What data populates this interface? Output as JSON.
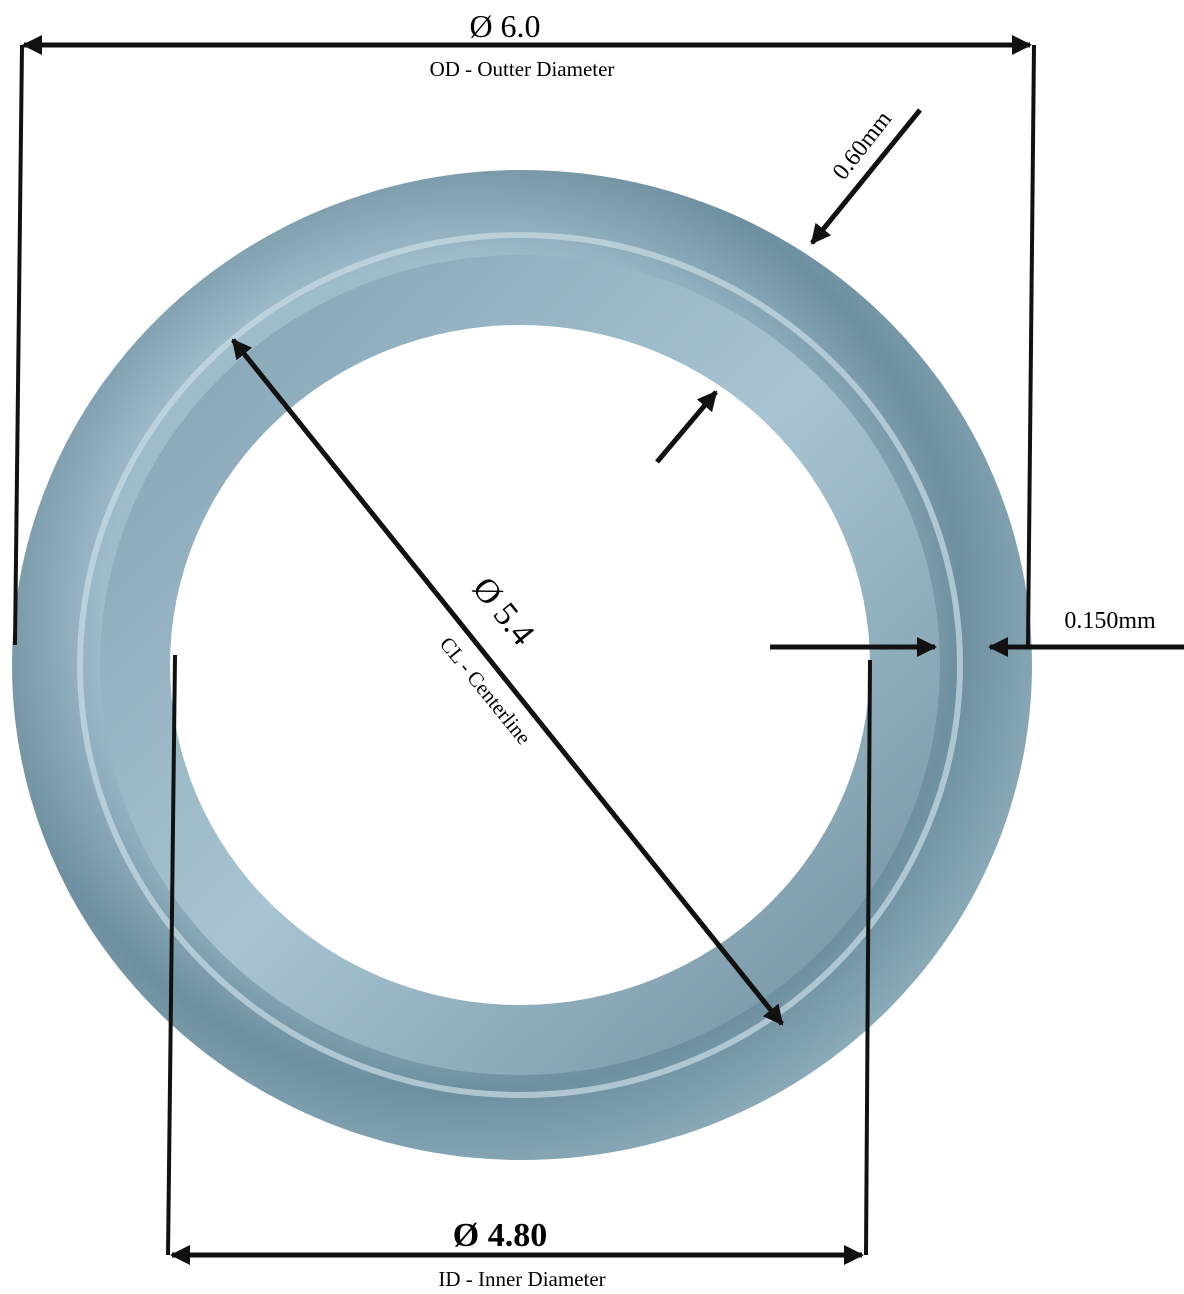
{
  "dimensions": {
    "outer": {
      "value": "Ø 6.0",
      "label": "OD - Outter Diameter"
    },
    "thickness": {
      "value": "0.60mm"
    },
    "centerline": {
      "value": "Ø 5.4",
      "label": "CL - Centerline"
    },
    "lip": {
      "value": "0.150mm"
    },
    "inner": {
      "value": "Ø 4.80",
      "label": "ID - Inner Diameter"
    }
  }
}
